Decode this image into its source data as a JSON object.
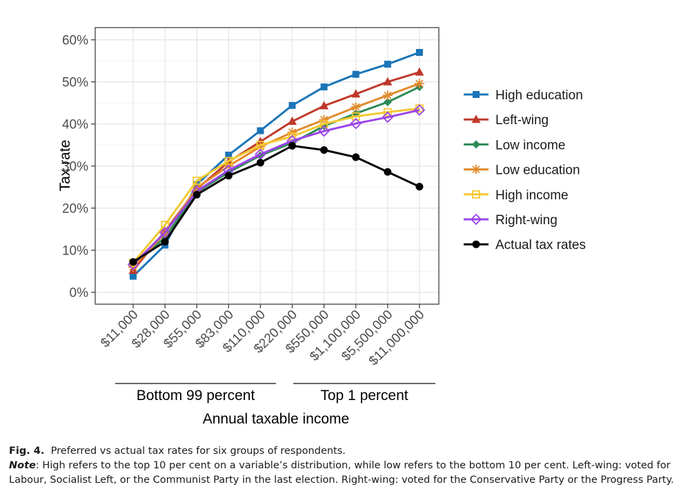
{
  "chart_data": {
    "type": "line",
    "ylabel": "Tax rate",
    "xlabel": "Annual taxable income",
    "categories": [
      "$11,000",
      "$28,000",
      "$55,000",
      "$83,000",
      "$110,000",
      "$220,000",
      "$550,000",
      "$1,100,000",
      "$5,500,000",
      "$11,000,000"
    ],
    "yticks": [
      "0%",
      "10%",
      "20%",
      "30%",
      "40%",
      "50%",
      "60%"
    ],
    "ylim": [
      0,
      0.62
    ],
    "grid": true,
    "legend_position": "right",
    "groups": [
      {
        "label": "Bottom 99 percent",
        "from": 0,
        "to": 4
      },
      {
        "label": "Top 1 percent",
        "from": 5,
        "to": 9
      }
    ],
    "series": [
      {
        "name": "High education",
        "color": "#1a75b8",
        "marker": "square",
        "values": [
          0.038,
          0.112,
          0.256,
          0.326,
          0.384,
          0.444,
          0.488,
          0.518,
          0.542,
          0.57
        ]
      },
      {
        "name": "Left-wing",
        "color": "#c0392b",
        "marker": "triangle",
        "values": [
          0.052,
          0.145,
          0.245,
          0.31,
          0.358,
          0.406,
          0.443,
          0.471,
          0.5,
          0.523
        ]
      },
      {
        "name": "Low income",
        "color": "#2e8b57",
        "marker": "diamond-filled",
        "values": [
          0.065,
          0.13,
          0.238,
          0.285,
          0.325,
          0.355,
          0.395,
          0.425,
          0.452,
          0.488
        ]
      },
      {
        "name": "Low education",
        "color": "#e08a2c",
        "marker": "asterisk",
        "values": [
          0.06,
          0.14,
          0.248,
          0.3,
          0.346,
          0.38,
          0.41,
          0.44,
          0.468,
          0.496
        ]
      },
      {
        "name": "High income",
        "color": "#f3c932",
        "marker": "square-open",
        "values": [
          0.07,
          0.16,
          0.265,
          0.312,
          0.35,
          0.37,
          0.4,
          0.418,
          0.428,
          0.437
        ]
      },
      {
        "name": "Right-wing",
        "color": "#9b44e8",
        "marker": "diamond-open",
        "values": [
          0.066,
          0.142,
          0.24,
          0.29,
          0.328,
          0.36,
          0.383,
          0.401,
          0.416,
          0.433
        ]
      },
      {
        "name": "Actual tax rates",
        "color": "#000000",
        "marker": "circle",
        "values": [
          0.072,
          0.12,
          0.232,
          0.277,
          0.308,
          0.348,
          0.338,
          0.321,
          0.286,
          0.251
        ]
      }
    ]
  },
  "caption": {
    "fig_label": "Fig. 4.",
    "fig_text": "Preferred vs actual tax rates for six groups of respondents.",
    "note_label": "Note",
    "note_text": ": High refers to the top 10 per cent on a variable’s distribution, while low refers to the bottom 10 per cent. Left-wing: voted for Labour, Socialist Left, or the Communist Party in the last election. Right-wing: voted for the Conservative Party or the Progress Party."
  }
}
